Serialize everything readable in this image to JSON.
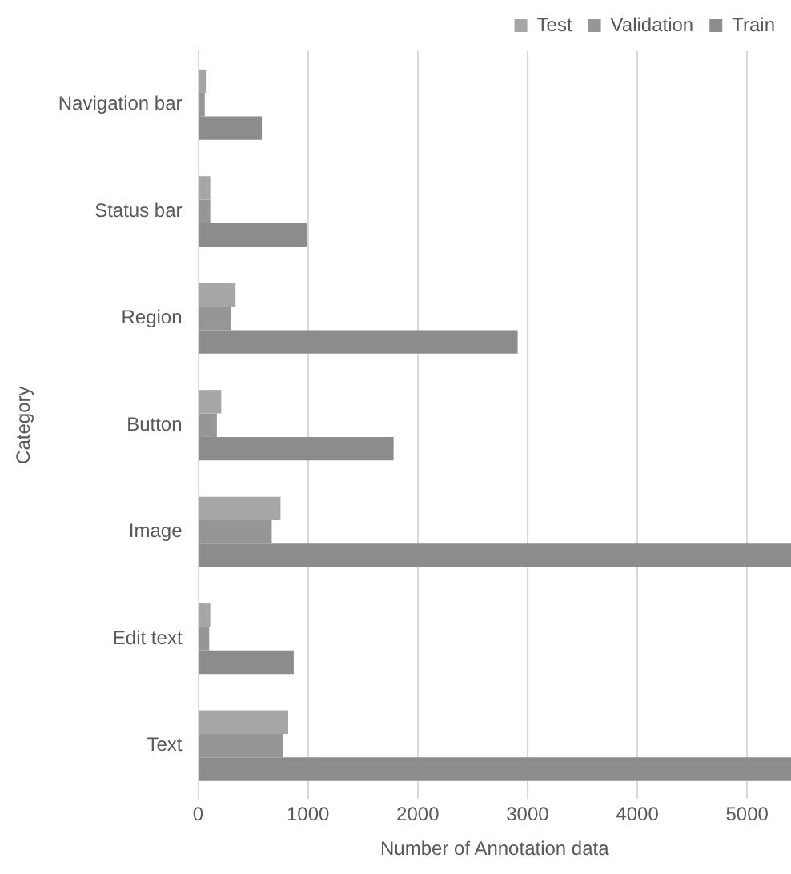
{
  "chart_data": {
    "type": "bar",
    "orientation": "horizontal",
    "xlabel": "Number of Annotation data",
    "ylabel": "Category",
    "categories": [
      "Navigation bar",
      "Status bar",
      "Region",
      "Button",
      "Image",
      "Edit text",
      "Text"
    ],
    "series": [
      {
        "name": "Test",
        "color": "#a6a6a6",
        "values": [
          70,
          110,
          340,
          210,
          750,
          110,
          820
        ]
      },
      {
        "name": "Validation",
        "color": "#969696",
        "values": [
          60,
          110,
          300,
          170,
          670,
          100,
          770
        ]
      },
      {
        "name": "Train",
        "color": "#8c8c8c",
        "values": [
          580,
          990,
          2910,
          1780,
          5400,
          870,
          5400
        ]
      }
    ],
    "xlim": [
      0,
      5400
    ],
    "xticks": [
      0,
      1000,
      2000,
      3000,
      4000,
      5000
    ],
    "grid": "x",
    "legend": "top right"
  }
}
